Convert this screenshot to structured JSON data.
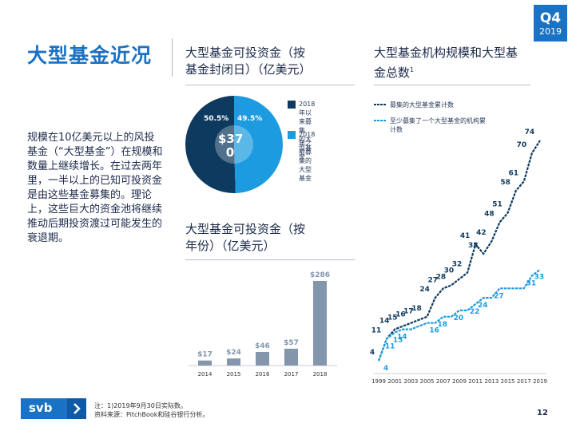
{
  "badge": {
    "quarter": "Q4",
    "year": "2019"
  },
  "title": "大型基金近况",
  "intro": "规模在10亿美元以上的风投基金（“大型基金”）在规模和数量上继续增长。在过去两年里，一半以上的已知可投资金是由这些基金募集的。理论上，这些巨大的资金池将继续推动后期投资渡过可能发生的衰退期。",
  "pie_section": {
    "title_line1": "大型基金可投资金（按",
    "title_line2": "基金封闭日）（亿美元）",
    "center_line1": "$37",
    "center_line2": "0",
    "legend": [
      {
        "text_line1": "2018年以来募集",
        "text_line2": "的大型基金",
        "color": "#0e3a5f"
      },
      {
        "text_line1": "2018年之前募集的",
        "text_line2": "大型基金",
        "color": "#1d9be0"
      }
    ]
  },
  "bar_section": {
    "title_line1": "大型基金可投资金（按",
    "title_line2": "年份）（亿美元）"
  },
  "line_section": {
    "title_line1": "大型基金机构规模和大型基",
    "title_line2": "金总数",
    "title_sup": "1",
    "legend": [
      {
        "text_line1": "募集的大型基金累计数",
        "text_line2": "",
        "color": "#0e3a5f"
      },
      {
        "text_line1": "至少募集了一个大型基金的机构累",
        "text_line2": "计数",
        "color": "#1d9be0"
      }
    ]
  },
  "chart_data": [
    {
      "type": "pie",
      "title": "大型基金可投资金（按基金封闭日）（亿美元）",
      "labels": [
        "2018年以来募集的大型基金",
        "2018年之前募集的大型基金"
      ],
      "values": [
        50.5,
        49.5
      ],
      "value_labels": [
        "50.5%",
        "49.5%"
      ],
      "colors": [
        "#0e3a5f",
        "#1d9be0"
      ],
      "center_label": "$370"
    },
    {
      "type": "bar",
      "title": "大型基金可投资金（按年份）（亿美元）",
      "categories": [
        "2014",
        "2015",
        "2016",
        "2017",
        "2018"
      ],
      "values": [
        17,
        24,
        46,
        57,
        286
      ],
      "value_labels": [
        "$17",
        "$24",
        "$46",
        "$57",
        "$286"
      ],
      "ylim": [
        0,
        286
      ],
      "color": "#8496ac"
    },
    {
      "type": "line",
      "title": "大型基金机构规模和大型基金总数",
      "x_range": [
        1999,
        2019
      ],
      "x_ticks": [
        "1999",
        "2001",
        "2003",
        "2005",
        "2007",
        "2009",
        "2011",
        "2013",
        "2015",
        "2017",
        "2019"
      ],
      "ylim": [
        0,
        80
      ],
      "series": [
        {
          "name": "募集的大型基金累计数",
          "color": "#0e3a5f",
          "x": [
            1999,
            2000,
            2001,
            2002,
            2003,
            2004,
            2005,
            2006,
            2007,
            2008,
            2009,
            2010,
            2011,
            2012,
            2013,
            2014,
            2015,
            2016,
            2017,
            2018,
            2019
          ],
          "y": [
            4,
            11,
            14,
            15,
            16,
            17,
            18,
            24,
            27,
            28,
            30,
            32,
            41,
            38,
            42,
            48,
            51,
            58,
            61,
            70,
            74
          ],
          "labels": [
            {
              "x": 1999,
              "y": 4,
              "text": "4"
            },
            {
              "x": 1999.5,
              "y": 11,
              "text": "11"
            },
            {
              "x": 2000.5,
              "y": 14,
              "text": "14"
            },
            {
              "x": 2001.5,
              "y": 15,
              "text": "15"
            },
            {
              "x": 2002.5,
              "y": 16,
              "text": "16"
            },
            {
              "x": 2003.5,
              "y": 17,
              "text": "17"
            },
            {
              "x": 2004.5,
              "y": 18,
              "text": "18"
            },
            {
              "x": 2005.5,
              "y": 24,
              "text": "24"
            },
            {
              "x": 2006.5,
              "y": 27,
              "text": "27"
            },
            {
              "x": 2007.5,
              "y": 28,
              "text": "28"
            },
            {
              "x": 2008.5,
              "y": 30,
              "text": "30"
            },
            {
              "x": 2009.5,
              "y": 32,
              "text": "32"
            },
            {
              "x": 2010.5,
              "y": 41,
              "text": "41"
            },
            {
              "x": 2011.5,
              "y": 38,
              "text": "38"
            },
            {
              "x": 2012.5,
              "y": 42,
              "text": "42"
            },
            {
              "x": 2013.5,
              "y": 48,
              "text": "48"
            },
            {
              "x": 2014.5,
              "y": 51,
              "text": "51"
            },
            {
              "x": 2015.5,
              "y": 58,
              "text": "58"
            },
            {
              "x": 2016.5,
              "y": 61,
              "text": "61"
            },
            {
              "x": 2017.5,
              "y": 70,
              "text": "70"
            },
            {
              "x": 2018.5,
              "y": 74,
              "text": "74"
            }
          ]
        },
        {
          "name": "至少募集了一个大型基金的机构累计数",
          "color": "#1d9be0",
          "x": [
            1999,
            2000,
            2001,
            2002,
            2003,
            2004,
            2005,
            2006,
            2007,
            2008,
            2009,
            2010,
            2011,
            2012,
            2013,
            2014,
            2015,
            2016,
            2017,
            2018,
            2019
          ],
          "y": [
            4,
            11,
            13,
            14,
            14,
            15,
            16,
            16,
            18,
            18,
            20,
            20,
            22,
            24,
            24,
            27,
            27,
            27,
            27,
            31,
            33
          ],
          "labels": [
            {
              "x": 1999.5,
              "y": 4,
              "text": "4"
            },
            {
              "x": 2000,
              "y": 11,
              "text": "11"
            },
            {
              "x": 2001,
              "y": 13,
              "text": "13"
            },
            {
              "x": 2001.5,
              "y": 14,
              "text": "14"
            },
            {
              "x": 2005.5,
              "y": 16,
              "text": "16"
            },
            {
              "x": 2006.5,
              "y": 18,
              "text": "18"
            },
            {
              "x": 2008.5,
              "y": 20,
              "text": "20"
            },
            {
              "x": 2010.5,
              "y": 22,
              "text": "22"
            },
            {
              "x": 2011.5,
              "y": 24,
              "text": "24"
            },
            {
              "x": 2013.5,
              "y": 27,
              "text": "27"
            },
            {
              "x": 2017.5,
              "y": 31,
              "text": "31"
            },
            {
              "x": 2018.5,
              "y": 33,
              "text": "33"
            }
          ]
        }
      ]
    }
  ],
  "footer": {
    "logo": "svb",
    "note_line1": "注：1)2019年9月30日实际数。",
    "note_line2": "资料来源：PitchBook和硅谷银行分析。",
    "page": "12"
  }
}
